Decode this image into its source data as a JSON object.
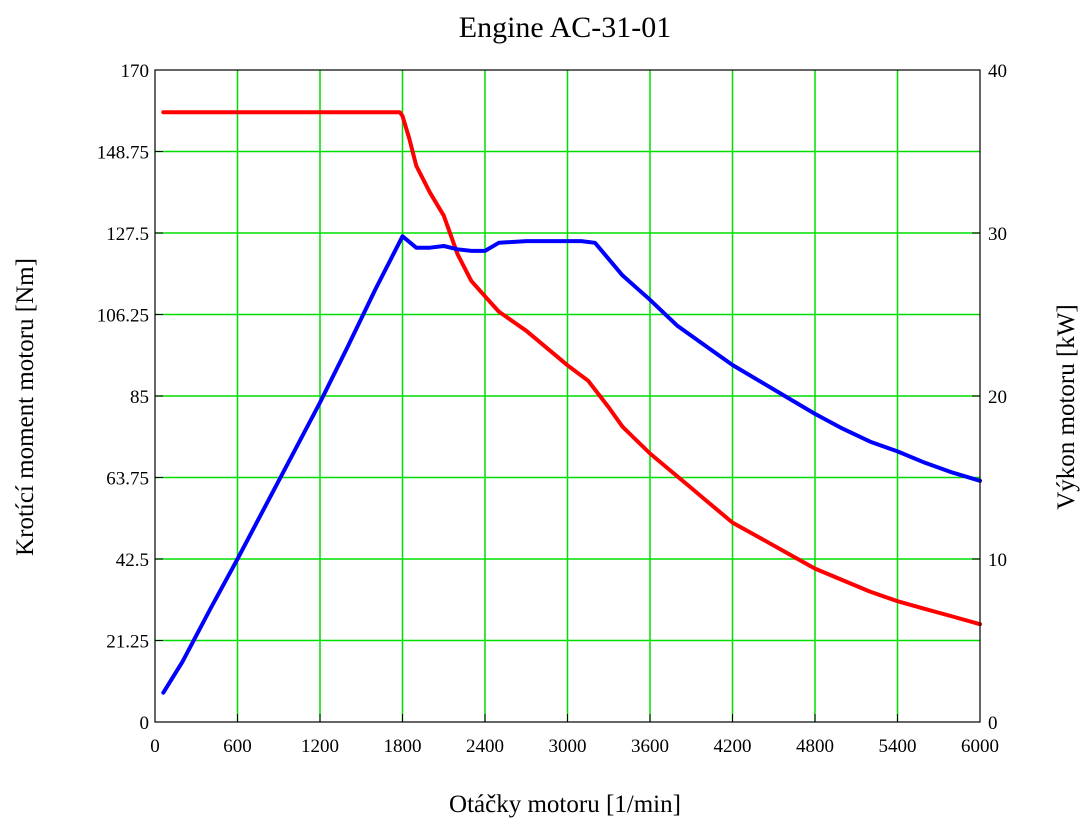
{
  "chart_data": {
    "type": "line",
    "title": "Engine AC-31-01",
    "xlabel": "Otáčky motoru [1/min]",
    "ylabel_left": "Krotící moment motoru [Nm]",
    "ylabel_right": "Výkon motoru [kW]",
    "xlim": [
      0,
      6000
    ],
    "ylim_left": [
      0,
      170
    ],
    "ylim_right": [
      0,
      40
    ],
    "x_ticks": [
      "0",
      "600",
      "1200",
      "1800",
      "2400",
      "3000",
      "3600",
      "4200",
      "4800",
      "5400",
      "6000"
    ],
    "y_left_ticks": [
      "0",
      "21.25",
      "42.5",
      "63.75",
      "85",
      "106.25",
      "127.5",
      "148.75",
      "170"
    ],
    "y_right_ticks": [
      "0",
      "10",
      "20",
      "30",
      "40"
    ],
    "grid": true,
    "colors": {
      "grid": "#00dd00",
      "torque": "#ff0000",
      "power": "#0000ff",
      "frame": "#000000"
    },
    "series": [
      {
        "axis": "left",
        "color": "#ff0000",
        "x": [
          60,
          300,
          600,
          900,
          1200,
          1500,
          1780,
          1800,
          1850,
          1900,
          2000,
          2100,
          2200,
          2300,
          2400,
          2500,
          2700,
          2900,
          3000,
          3150,
          3300,
          3400,
          3600,
          3800,
          3900,
          4000,
          4200,
          4400,
          4600,
          4800,
          5000,
          5200,
          5400,
          5600,
          5800,
          6000
        ],
        "y": [
          159,
          159,
          159,
          159,
          159,
          159,
          159,
          158,
          152,
          145,
          138,
          132,
          122,
          115,
          111,
          107,
          102,
          96,
          93,
          89,
          82,
          77,
          70,
          64,
          61,
          58,
          52,
          48,
          44,
          40,
          37,
          34,
          31.5,
          29.5,
          27.5,
          25.5
        ]
      },
      {
        "axis": "right",
        "color": "#0000ff",
        "x": [
          60,
          200,
          400,
          600,
          800,
          1000,
          1200,
          1400,
          1600,
          1800,
          1900,
          2000,
          2100,
          2200,
          2300,
          2400,
          2500,
          2700,
          2900,
          3000,
          3100,
          3200,
          3400,
          3600,
          3800,
          4000,
          4200,
          4400,
          4600,
          4800,
          5000,
          5200,
          5400,
          5600,
          5800,
          6000
        ],
        "y": [
          1.8,
          3.7,
          6.9,
          10,
          13.2,
          16.4,
          19.6,
          23,
          26.5,
          29.8,
          29.1,
          29.1,
          29.2,
          29,
          28.9,
          28.9,
          29.4,
          29.5,
          29.5,
          29.5,
          29.5,
          29.4,
          27.4,
          25.9,
          24.3,
          23.1,
          21.9,
          20.9,
          19.9,
          18.9,
          18,
          17.2,
          16.6,
          15.9,
          15.3,
          14.8
        ]
      }
    ]
  }
}
